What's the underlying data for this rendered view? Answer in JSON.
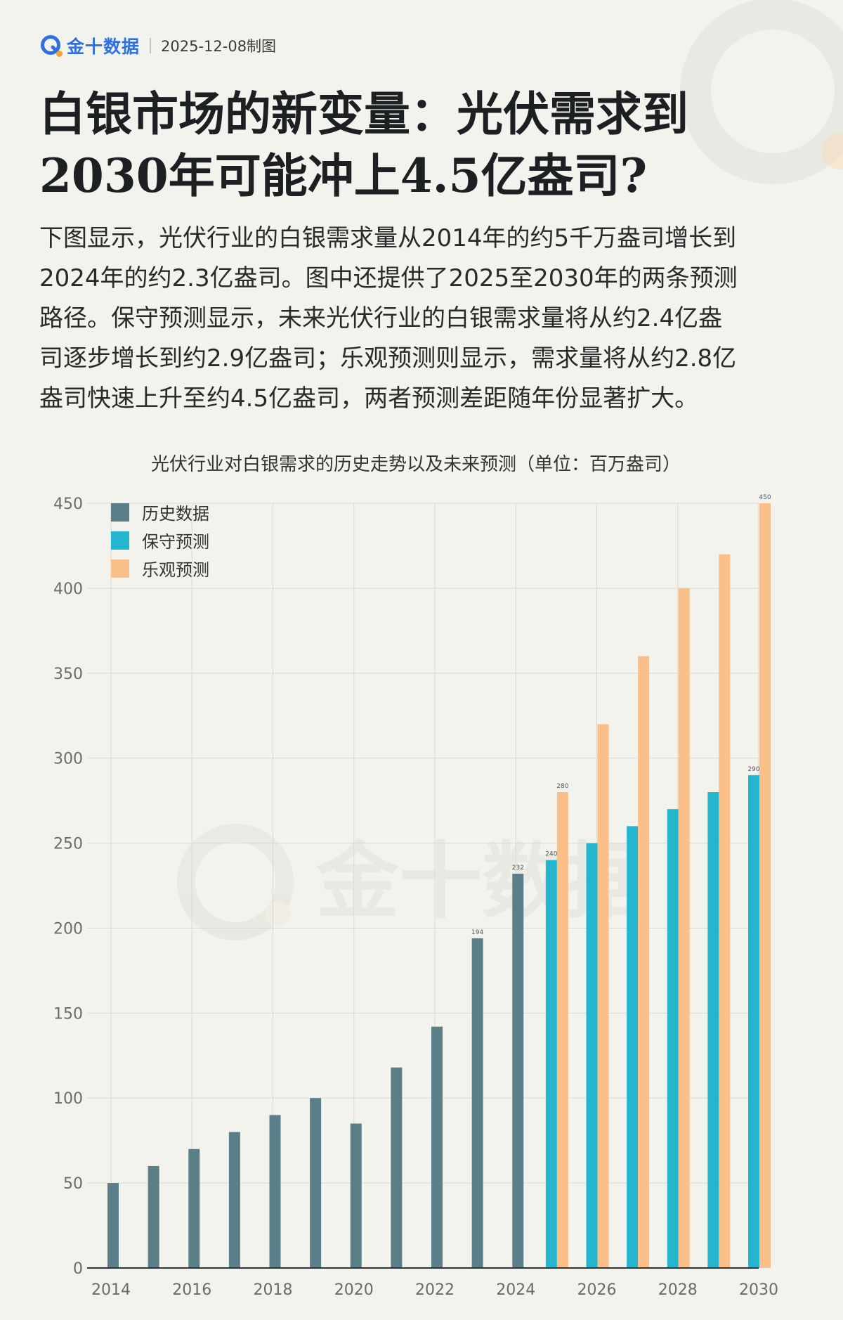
{
  "header": {
    "brand": "金十数据",
    "date": "2025-12-08制图",
    "logo_icon": "jin10-logo-icon"
  },
  "title_lines": [
    "白银市场的新变量：光伏需求到",
    "2030年可能冲上4.5亿盎司?"
  ],
  "description_lines": [
    "下图显示，光伏行业的白银需求量从2014年的约5千万盎司增长到",
    "2024年的约2.3亿盎司。图中还提供了2025至2030年的两条预测",
    "路径。保守预测显示，未来光伏行业的白银需求量将从约2.4亿盎",
    "司逐步增长到约2.9亿盎司；乐观预测则显示，需求量将从约2.8亿",
    "盎司快速上升至约4.5亿盎司，两者预测差距随年份显著扩大。"
  ],
  "watermark": "金十数据",
  "chart_data": {
    "type": "bar",
    "title": "光伏行业对白银需求的历史走势以及未来预测（单位：百万盎司）",
    "xlabel": "",
    "ylabel": "",
    "ylim": [
      0,
      450
    ],
    "yticks": [
      0,
      50,
      100,
      150,
      200,
      250,
      300,
      350,
      400,
      450
    ],
    "xticks": [
      2014,
      2016,
      2018,
      2020,
      2022,
      2024,
      2026,
      2028,
      2030
    ],
    "grid": true,
    "legend_position": "top-left",
    "colors": {
      "history": "#5b7f88",
      "conservative": "#24b6cf",
      "optimistic": "#fbc089",
      "axis": "#333333",
      "grid": "#d9d9d4",
      "tick": "#6b6b6b"
    },
    "series": [
      {
        "name": "历史数据",
        "key": "history",
        "x": [
          2014,
          2015,
          2016,
          2017,
          2018,
          2019,
          2020,
          2021,
          2022,
          2023,
          2024
        ],
        "values": [
          50,
          60,
          70,
          80,
          90,
          100,
          85,
          118,
          142,
          194,
          232
        ],
        "data_labels": {
          "2023": "194",
          "2024": "232"
        }
      },
      {
        "name": "保守预测",
        "key": "conservative",
        "x": [
          2025,
          2026,
          2027,
          2028,
          2029,
          2030
        ],
        "values": [
          240,
          250,
          260,
          270,
          280,
          290
        ],
        "data_labels": {
          "2025": "240",
          "2030": "290"
        }
      },
      {
        "name": "乐观预测",
        "key": "optimistic",
        "x": [
          2025,
          2026,
          2027,
          2028,
          2029,
          2030
        ],
        "values": [
          280,
          320,
          360,
          400,
          420,
          450
        ],
        "data_labels": {
          "2025": "280",
          "2030": "450"
        }
      }
    ]
  }
}
